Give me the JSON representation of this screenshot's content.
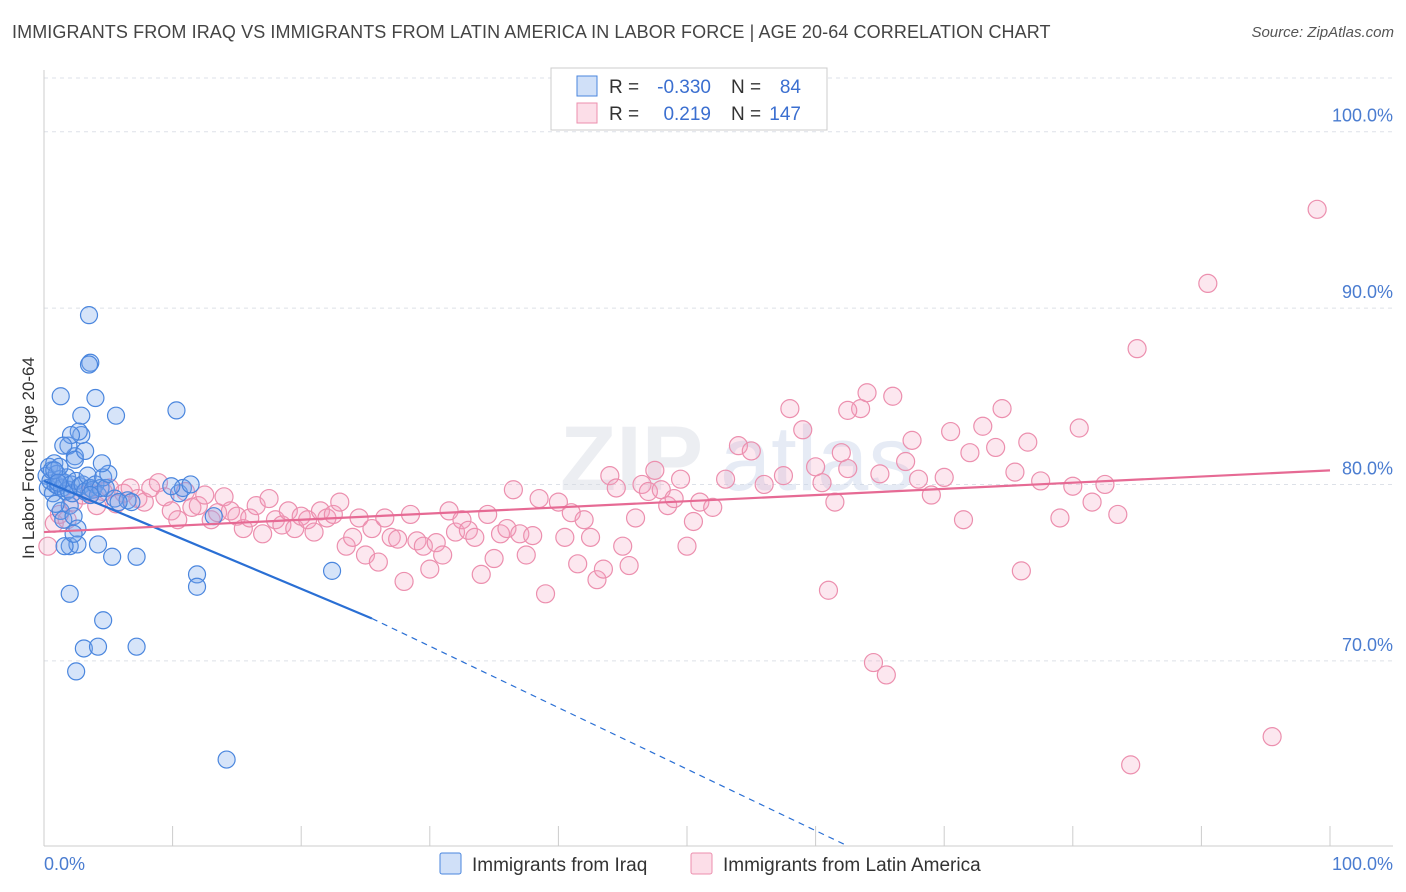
{
  "title": "IMMIGRANTS FROM IRAQ VS IMMIGRANTS FROM LATIN AMERICA IN LABOR FORCE | AGE 20-64 CORRELATION CHART",
  "source": "Source: ZipAtlas.com",
  "watermark": {
    "zip": "ZIP",
    "atlas": "atlas"
  },
  "colors": {
    "iraq_fill": "rgba(120,165,235,0.30)",
    "iraq_stroke": "#4a86de",
    "iraq_line": "#2a6fd4",
    "latin_fill": "rgba(245,160,190,0.25)",
    "latin_stroke": "#ec8fae",
    "latin_line": "#e66a94",
    "grid": "#dde1e8",
    "axis_text": "#4a7cd0"
  },
  "legend": {
    "rows": [
      {
        "r_label": "R =",
        "r_value": "-0.330",
        "n_label": "N =",
        "n_value": "84"
      },
      {
        "r_label": "R =",
        "r_value": "0.219",
        "n_label": "N =",
        "n_value": "147"
      }
    ]
  },
  "bottom_legend": {
    "iraq": "Immigrants from Iraq",
    "latin": "Immigrants from Latin America"
  },
  "chart_data": {
    "type": "scatter",
    "title": "IMMIGRANTS FROM IRAQ VS IMMIGRANTS FROM LATIN AMERICA IN LABOR FORCE | AGE 20-64 CORRELATION CHART",
    "xlabel": "",
    "ylabel": "In Labor Force | Age 20-64",
    "xlim": [
      0,
      100
    ],
    "ylim": [
      59.5,
      103.5
    ],
    "x_tick_labels": {
      "left": "0.0%",
      "right": "100.0%"
    },
    "y_ticks": [
      {
        "value": 100,
        "label": "100.0%"
      },
      {
        "value": 90,
        "label": "90.0%"
      },
      {
        "value": 80,
        "label": "80.0%"
      },
      {
        "value": 70,
        "label": "70.0%"
      }
    ],
    "series": [
      {
        "name": "Immigrants from Iraq",
        "R": -0.33,
        "N": 84,
        "trend": {
          "x0": 0,
          "y0": 80.2,
          "x1": 25.5,
          "y1": 72.4,
          "dashed_to_x": 62.5,
          "dashed_to_y": 59.5
        },
        "points": [
          [
            0.2,
            80.5
          ],
          [
            0.3,
            79.8
          ],
          [
            0.4,
            81.0
          ],
          [
            0.5,
            80.2
          ],
          [
            0.6,
            80.8
          ],
          [
            0.7,
            79.5
          ],
          [
            0.8,
            81.2
          ],
          [
            0.9,
            80.0
          ],
          [
            1.0,
            80.6
          ],
          [
            1.1,
            79.9
          ],
          [
            1.2,
            80.3
          ],
          [
            1.3,
            78.5
          ],
          [
            1.4,
            79.8
          ],
          [
            1.5,
            78.0
          ],
          [
            1.6,
            80.1
          ],
          [
            1.7,
            79.6
          ],
          [
            1.8,
            80.4
          ],
          [
            1.9,
            79.7
          ],
          [
            2.0,
            78.8
          ],
          [
            2.1,
            80.0
          ],
          [
            2.2,
            79.5
          ],
          [
            2.3,
            78.2
          ],
          [
            2.4,
            81.6
          ],
          [
            2.5,
            80.2
          ],
          [
            2.6,
            77.5
          ],
          [
            2.8,
            79.9
          ],
          [
            3.0,
            80.0
          ],
          [
            3.2,
            79.6
          ],
          [
            3.4,
            80.5
          ],
          [
            3.6,
            79.8
          ],
          [
            3.8,
            79.7
          ],
          [
            4.0,
            80.0
          ],
          [
            4.2,
            79.4
          ],
          [
            4.4,
            79.8
          ],
          [
            4.6,
            80.4
          ],
          [
            4.8,
            79.8
          ],
          [
            5.0,
            80.6
          ],
          [
            5.5,
            79.2
          ],
          [
            6.5,
            79.1
          ],
          [
            1.3,
            85.0
          ],
          [
            2.9,
            83.9
          ],
          [
            1.9,
            82.2
          ],
          [
            2.4,
            81.4
          ],
          [
            3.2,
            81.9
          ],
          [
            2.9,
            82.8
          ],
          [
            2.7,
            83.0
          ],
          [
            2.1,
            82.8
          ],
          [
            1.5,
            82.2
          ],
          [
            3.6,
            86.9
          ],
          [
            3.5,
            86.8
          ],
          [
            4.0,
            84.9
          ],
          [
            5.6,
            83.9
          ],
          [
            3.5,
            89.6
          ],
          [
            4.5,
            81.2
          ],
          [
            1.2,
            81.0
          ],
          [
            0.8,
            80.8
          ],
          [
            10.3,
            84.2
          ],
          [
            2.0,
            76.5
          ],
          [
            2.6,
            76.6
          ],
          [
            4.2,
            76.6
          ],
          [
            1.6,
            76.5
          ],
          [
            5.3,
            75.9
          ],
          [
            7.2,
            75.9
          ],
          [
            2.0,
            73.8
          ],
          [
            4.6,
            72.3
          ],
          [
            3.1,
            70.7
          ],
          [
            4.2,
            70.8
          ],
          [
            7.2,
            70.8
          ],
          [
            2.5,
            69.4
          ],
          [
            11.9,
            74.9
          ],
          [
            11.9,
            74.2
          ],
          [
            22.4,
            75.1
          ],
          [
            13.2,
            78.2
          ],
          [
            10.5,
            79.5
          ],
          [
            10.8,
            79.8
          ],
          [
            11.4,
            80.0
          ],
          [
            9.9,
            79.9
          ],
          [
            14.2,
            64.4
          ],
          [
            6.8,
            79.0
          ],
          [
            2.3,
            77.2
          ],
          [
            0.9,
            78.9
          ],
          [
            3.6,
            79.4
          ],
          [
            5.8,
            79.0
          ],
          [
            1.1,
            80.1
          ]
        ]
      },
      {
        "name": "Immigrants from Latin America",
        "R": 0.219,
        "N": 147,
        "trend": {
          "x0": 0,
          "y0": 77.3,
          "x1": 100,
          "y1": 80.8
        },
        "points": [
          [
            0.3,
            76.5
          ],
          [
            0.8,
            77.8
          ],
          [
            1.2,
            78.3
          ],
          [
            1.8,
            78.0
          ],
          [
            2.3,
            79.0
          ],
          [
            3.0,
            79.4
          ],
          [
            3.6,
            79.5
          ],
          [
            4.1,
            78.8
          ],
          [
            4.6,
            79.6
          ],
          [
            5.1,
            79.8
          ],
          [
            5.6,
            78.9
          ],
          [
            6.2,
            79.5
          ],
          [
            6.7,
            79.8
          ],
          [
            7.3,
            79.2
          ],
          [
            7.8,
            79.0
          ],
          [
            8.3,
            79.8
          ],
          [
            8.9,
            80.1
          ],
          [
            9.4,
            79.3
          ],
          [
            9.9,
            78.5
          ],
          [
            10.4,
            78.0
          ],
          [
            11.0,
            79.6
          ],
          [
            11.5,
            78.7
          ],
          [
            12.0,
            78.8
          ],
          [
            12.5,
            79.4
          ],
          [
            13.0,
            78.0
          ],
          [
            13.5,
            78.4
          ],
          [
            14.0,
            79.3
          ],
          [
            14.5,
            78.5
          ],
          [
            15.0,
            78.2
          ],
          [
            15.5,
            77.5
          ],
          [
            16.0,
            78.1
          ],
          [
            16.5,
            78.8
          ],
          [
            17.0,
            77.2
          ],
          [
            17.5,
            79.2
          ],
          [
            18.0,
            78.0
          ],
          [
            18.5,
            77.7
          ],
          [
            19.0,
            78.5
          ],
          [
            19.5,
            77.5
          ],
          [
            20.0,
            78.2
          ],
          [
            20.5,
            78.0
          ],
          [
            21.0,
            77.3
          ],
          [
            21.5,
            78.5
          ],
          [
            22.0,
            78.1
          ],
          [
            22.5,
            78.3
          ],
          [
            23.0,
            79.0
          ],
          [
            23.5,
            76.5
          ],
          [
            24.0,
            77.0
          ],
          [
            24.5,
            78.1
          ],
          [
            25.0,
            76.0
          ],
          [
            25.5,
            77.5
          ],
          [
            26.0,
            75.6
          ],
          [
            26.5,
            78.1
          ],
          [
            27.0,
            77.0
          ],
          [
            27.5,
            76.9
          ],
          [
            28.0,
            74.5
          ],
          [
            28.5,
            78.3
          ],
          [
            29.0,
            76.8
          ],
          [
            29.5,
            76.5
          ],
          [
            30.0,
            75.2
          ],
          [
            30.5,
            76.7
          ],
          [
            31.0,
            76.0
          ],
          [
            31.5,
            78.5
          ],
          [
            32.0,
            77.3
          ],
          [
            32.5,
            78.0
          ],
          [
            33.0,
            77.4
          ],
          [
            33.5,
            77.0
          ],
          [
            34.0,
            74.9
          ],
          [
            34.5,
            78.3
          ],
          [
            35.0,
            75.8
          ],
          [
            35.5,
            77.2
          ],
          [
            36.0,
            77.5
          ],
          [
            36.5,
            79.7
          ],
          [
            37.0,
            77.2
          ],
          [
            37.5,
            76.0
          ],
          [
            38.0,
            77.1
          ],
          [
            38.5,
            79.2
          ],
          [
            39.0,
            73.8
          ],
          [
            40.0,
            79.0
          ],
          [
            40.5,
            77.0
          ],
          [
            41.0,
            78.4
          ],
          [
            41.5,
            75.5
          ],
          [
            42.0,
            78.0
          ],
          [
            42.5,
            77.0
          ],
          [
            43.0,
            74.6
          ],
          [
            43.5,
            75.2
          ],
          [
            44.0,
            80.5
          ],
          [
            44.5,
            79.8
          ],
          [
            45.0,
            76.5
          ],
          [
            45.5,
            75.4
          ],
          [
            46.0,
            78.1
          ],
          [
            46.5,
            80.0
          ],
          [
            47.0,
            79.6
          ],
          [
            47.5,
            80.8
          ],
          [
            48.0,
            79.7
          ],
          [
            48.5,
            78.8
          ],
          [
            49.0,
            79.2
          ],
          [
            49.5,
            80.3
          ],
          [
            50.0,
            76.5
          ],
          [
            50.5,
            77.9
          ],
          [
            51.0,
            79.0
          ],
          [
            52.0,
            78.7
          ],
          [
            53.0,
            80.3
          ],
          [
            54.0,
            82.2
          ],
          [
            55.0,
            81.9
          ],
          [
            56.0,
            80.0
          ],
          [
            57.5,
            80.5
          ],
          [
            58.0,
            84.3
          ],
          [
            59.0,
            83.1
          ],
          [
            60.0,
            81.0
          ],
          [
            60.5,
            80.1
          ],
          [
            61.0,
            74.0
          ],
          [
            61.5,
            79.0
          ],
          [
            62.0,
            81.8
          ],
          [
            62.5,
            80.9
          ],
          [
            63.5,
            84.3
          ],
          [
            64.0,
            85.2
          ],
          [
            64.5,
            69.9
          ],
          [
            65.0,
            80.6
          ],
          [
            65.5,
            69.2
          ],
          [
            66.0,
            85.0
          ],
          [
            67.0,
            81.3
          ],
          [
            67.5,
            82.5
          ],
          [
            68.0,
            80.3
          ],
          [
            69.0,
            79.4
          ],
          [
            70.0,
            80.4
          ],
          [
            70.5,
            83.0
          ],
          [
            71.5,
            78.0
          ],
          [
            72.0,
            81.8
          ],
          [
            73.0,
            83.3
          ],
          [
            74.0,
            82.1
          ],
          [
            74.5,
            84.3
          ],
          [
            75.5,
            80.7
          ],
          [
            76.0,
            75.1
          ],
          [
            76.5,
            82.4
          ],
          [
            77.5,
            80.2
          ],
          [
            79.0,
            78.1
          ],
          [
            80.0,
            79.9
          ],
          [
            80.5,
            83.2
          ],
          [
            81.5,
            79.0
          ],
          [
            82.5,
            80.0
          ],
          [
            83.5,
            78.3
          ],
          [
            84.5,
            64.1
          ],
          [
            85.0,
            87.7
          ],
          [
            90.5,
            91.4
          ],
          [
            95.5,
            65.7
          ],
          [
            99.0,
            95.6
          ],
          [
            62.5,
            84.2
          ]
        ]
      }
    ]
  }
}
